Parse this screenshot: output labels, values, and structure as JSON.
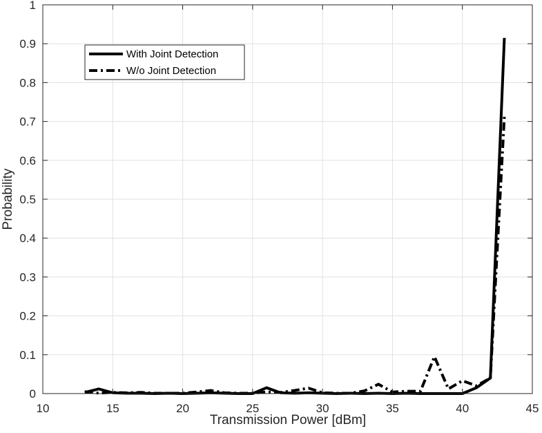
{
  "chart_data": {
    "type": "line",
    "title": "",
    "xlabel": "Transmission Power [dBm]",
    "ylabel": "Probability",
    "xlim": [
      10,
      45
    ],
    "ylim": [
      0,
      1
    ],
    "xticks": [
      10,
      15,
      20,
      25,
      30,
      35,
      40,
      45
    ],
    "yticks": [
      0,
      0.1,
      0.2,
      0.3,
      0.4,
      0.5,
      0.6,
      0.7,
      0.8,
      0.9,
      1
    ],
    "xtick_labels": [
      "10",
      "15",
      "20",
      "25",
      "30",
      "35",
      "40",
      "45"
    ],
    "ytick_labels": [
      "0",
      "0.1",
      "0.2",
      "0.3",
      "0.4",
      "0.5",
      "0.6",
      "0.7",
      "0.8",
      "0.9",
      "1"
    ],
    "grid": true,
    "legend_position": "top-left",
    "series": [
      {
        "name": "With Joint Detection",
        "style": "solid",
        "color": "#000000",
        "x": [
          13,
          14,
          15,
          16,
          17,
          18,
          19,
          20,
          21,
          22,
          23,
          24,
          25,
          26,
          27,
          28,
          29,
          30,
          31,
          32,
          33,
          34,
          35,
          36,
          37,
          38,
          39,
          40,
          41,
          42,
          43
        ],
        "y": [
          0.003,
          0.012,
          0.002,
          0.001,
          0.001,
          0,
          0.001,
          0,
          0.001,
          0.002,
          0.001,
          0,
          0,
          0.015,
          0.002,
          0.001,
          0.002,
          0.001,
          0,
          0.001,
          0,
          0.001,
          0,
          0.001,
          0,
          0,
          0,
          0,
          0.015,
          0.04,
          0.915
        ]
      },
      {
        "name": "W/o Joint Detection",
        "style": "dashdot",
        "color": "#000000",
        "x": [
          13,
          14,
          15,
          16,
          17,
          18,
          19,
          20,
          21,
          22,
          23,
          24,
          25,
          26,
          27,
          28,
          29,
          30,
          31,
          32,
          33,
          34,
          35,
          36,
          37,
          38,
          39,
          40,
          41,
          42,
          43
        ],
        "y": [
          0.005,
          0.001,
          0.003,
          0.002,
          0.003,
          0.001,
          0.001,
          0.001,
          0.004,
          0.008,
          0.002,
          0.001,
          0.001,
          0.004,
          0.003,
          0.008,
          0.014,
          0.002,
          0.001,
          0.001,
          0.007,
          0.024,
          0.004,
          0.006,
          0.006,
          0.095,
          0.012,
          0.033,
          0.02,
          0.04,
          0.712
        ]
      }
    ]
  }
}
